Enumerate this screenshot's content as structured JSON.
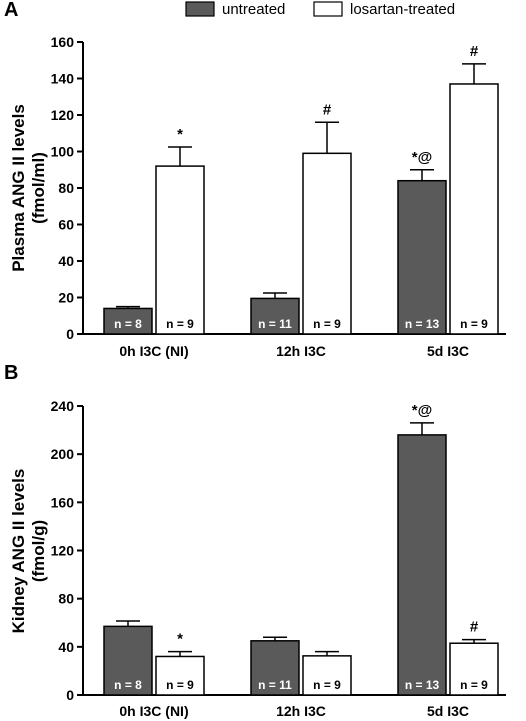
{
  "legend": {
    "items": [
      {
        "label": "untreated",
        "color": "#5a5a5a"
      },
      {
        "label": "losartan-treated",
        "color": "#ffffff"
      }
    ]
  },
  "chart_data": [
    {
      "type": "bar",
      "panel_label": "A",
      "title": "",
      "ylabel": "Plasma ANG II levels\n(fmol/ml)",
      "xlabel": "",
      "ylim": [
        0,
        160
      ],
      "yticks": [
        0,
        20,
        40,
        60,
        80,
        100,
        120,
        140,
        160
      ],
      "categories": [
        "0h I3C (NI)",
        "12h I3C",
        "5d I3C"
      ],
      "series": [
        {
          "name": "untreated",
          "color": "#5a5a5a",
          "values": [
            14,
            19.5,
            84
          ],
          "errors": [
            1,
            3,
            6
          ],
          "n_labels": [
            "n = 8",
            "n = 11",
            "n = 13"
          ],
          "annotations": [
            "",
            "",
            "*@"
          ]
        },
        {
          "name": "losartan-treated",
          "color": "#ffffff",
          "values": [
            92,
            99,
            137
          ],
          "errors": [
            10.5,
            17,
            11
          ],
          "n_labels": [
            "n = 9",
            "n = 9",
            "n = 9"
          ],
          "annotations": [
            "*",
            "#",
            "#"
          ]
        }
      ],
      "grid": false
    },
    {
      "type": "bar",
      "panel_label": "B",
      "title": "",
      "ylabel": "Kidney ANG II levels\n(fmol/g)",
      "xlabel": "",
      "ylim": [
        0,
        240
      ],
      "yticks": [
        0,
        40,
        80,
        120,
        160,
        200,
        240
      ],
      "categories": [
        "0h I3C (NI)",
        "12h I3C",
        "5d I3C"
      ],
      "series": [
        {
          "name": "untreated",
          "color": "#5a5a5a",
          "values": [
            57,
            45,
            216
          ],
          "errors": [
            4.5,
            3,
            10
          ],
          "n_labels": [
            "n = 8",
            "n = 11",
            "n = 13"
          ],
          "annotations": [
            "",
            "",
            "*@"
          ]
        },
        {
          "name": "losartan-treated",
          "color": "#ffffff",
          "values": [
            32,
            32.5,
            43
          ],
          "errors": [
            4,
            3.5,
            3
          ],
          "n_labels": [
            "n = 9",
            "n = 9",
            "n = 9"
          ],
          "annotations": [
            "*",
            "",
            "#"
          ]
        }
      ],
      "grid": false
    }
  ]
}
